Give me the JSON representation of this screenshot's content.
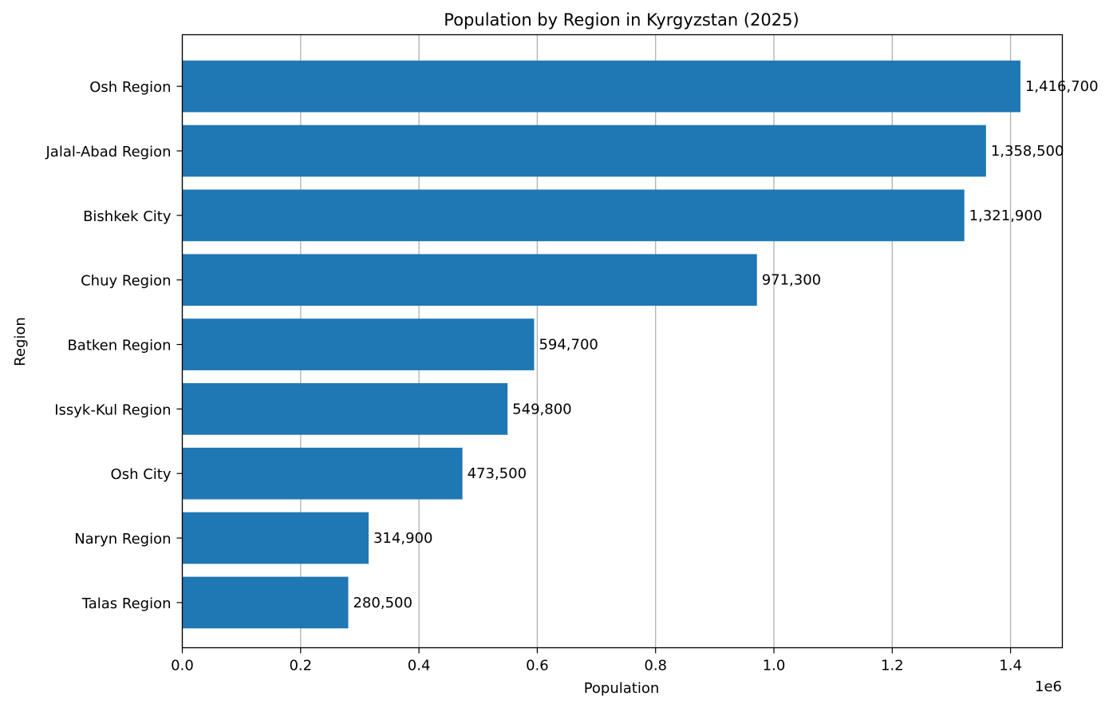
{
  "chart_data": {
    "type": "bar",
    "orientation": "horizontal",
    "title": "Population by Region in Kyrgyzstan (2025)",
    "xlabel": "Population",
    "ylabel": "Region",
    "x_offset_text": "1e6",
    "xlim": [
      0,
      1487535
    ],
    "x_ticks": [
      0,
      200000,
      400000,
      600000,
      800000,
      1000000,
      1200000,
      1400000
    ],
    "x_tick_labels": [
      "0.0",
      "0.2",
      "0.4",
      "0.6",
      "0.8",
      "1.0",
      "1.2",
      "1.4"
    ],
    "grid": "vertical",
    "bar_color": "#1f77b4",
    "categories": [
      "Osh Region",
      "Jalal-Abad Region",
      "Bishkek City",
      "Chuy Region",
      "Batken Region",
      "Issyk-Kul Region",
      "Osh City",
      "Naryn Region",
      "Talas Region"
    ],
    "values": [
      1416700,
      1358500,
      1321900,
      971300,
      594700,
      549800,
      473500,
      314900,
      280500
    ],
    "value_labels": [
      "1,416,700",
      "1,358,500",
      "1,321,900",
      "971,300",
      "594,700",
      "549,800",
      "473,500",
      "314,900",
      "280,500"
    ]
  }
}
